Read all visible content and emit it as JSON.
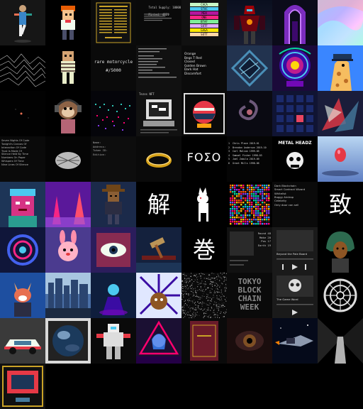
{
  "gallery": {
    "r1_stats": [
      "Total Supply: 10000",
      "Minted: 4821"
    ],
    "r1_pills": [
      {
        "label": "CACA",
        "color": "#c8f7c5"
      },
      {
        "label": "STOC",
        "color": "#4cc9f0"
      },
      {
        "label": "MEN",
        "color": "#b5179e"
      },
      {
        "label": "ONE",
        "color": "#f72585"
      },
      {
        "label": "BTAF",
        "color": "#80ed99"
      },
      {
        "label": "SOTF",
        "color": "#e0aaff"
      },
      {
        "label": "GAGA",
        "color": "#ffea00"
      },
      {
        "label": "SOTT",
        "color": "#ffd6a5"
      }
    ],
    "r2_moto_title": "rare motorcycle",
    "r2_moto_count": "#/5000",
    "r2_list": [
      "Orange",
      "Begs T Red",
      "Closed",
      "Golden Brown",
      "Dark Hat",
      "Discomfort"
    ],
    "r3_title": "Tezos NFT",
    "r4_poem": [
      "Seven Nights Of Code",
      "Tonight's Canvas Of",
      "Interaction Of Code",
      "Trust Is Made Of",
      "Silence Held By Time",
      "Numbers On Paper",
      "Whispers Of Time",
      "Nine Lines Of Silence"
    ],
    "r4_meta": [
      "Name:",
      "Address:",
      "Token ID:",
      "Edition:"
    ],
    "r4_fomo": "FOΣO",
    "r4_rank": [
      "1  Chris Place 2019-01",
      "2  Brendon Anderson 2019-10",
      "3  Carl Molian 1999-05",
      "4  Samuel Fisher 1998-03",
      "5  Joel Zabila 2019-09",
      "6  Grant Mills 1998-06"
    ],
    "r4_metal": "METAL HEADZ",
    "r5_kanji": "解",
    "r5_menu": [
      "Dark Blockchain",
      "Smart Contract Wizard",
      "Whitelist",
      "Buggy Airdrop",
      "Celebrity",
      "Only door can sell"
    ],
    "r5_kanji2": "致",
    "r6_kanji": "巻",
    "r6_sidebar": [
      "Round 48",
      "Make 20",
      "Pos 17",
      "Earth 19"
    ],
    "r6_player_title": "Beyond the Pale Board",
    "r6_sidebar2": [
      "Round 48",
      "Make 20",
      "Pos 55",
      "Earth 58"
    ],
    "r7_tokyo": [
      "TOKYO",
      "BLOCK",
      "CHAIN",
      "WEEK"
    ],
    "r7_player_title": "The Game Word"
  }
}
